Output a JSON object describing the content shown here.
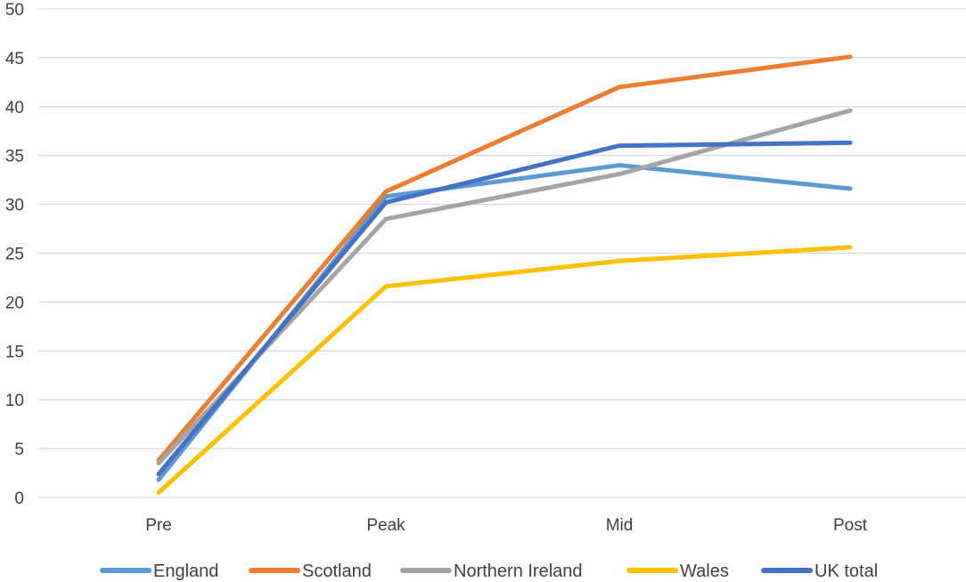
{
  "chart_data": {
    "type": "line",
    "title": "",
    "xlabel": "",
    "ylabel": "",
    "categories": [
      "Pre",
      "Peak",
      "Mid",
      "Post"
    ],
    "ylim": [
      0,
      50
    ],
    "yticks": [
      0,
      5,
      10,
      15,
      20,
      25,
      30,
      35,
      40,
      45,
      50
    ],
    "grid": true,
    "legend_position": "bottom",
    "series": [
      {
        "name": "England",
        "color": "#5b9bd5",
        "values": [
          1.8,
          30.8,
          34.0,
          31.6
        ]
      },
      {
        "name": "Scotland",
        "color": "#ed7d31",
        "values": [
          3.8,
          31.3,
          42.0,
          45.1
        ]
      },
      {
        "name": "Northern Ireland",
        "color": "#a5a5a5",
        "values": [
          3.5,
          28.5,
          33.1,
          39.6
        ]
      },
      {
        "name": "Wales",
        "color": "#ffc000",
        "values": [
          0.5,
          21.6,
          24.2,
          25.6
        ]
      },
      {
        "name": "UK total",
        "color": "#4472c4",
        "values": [
          2.4,
          30.2,
          36.0,
          36.3
        ]
      }
    ]
  }
}
